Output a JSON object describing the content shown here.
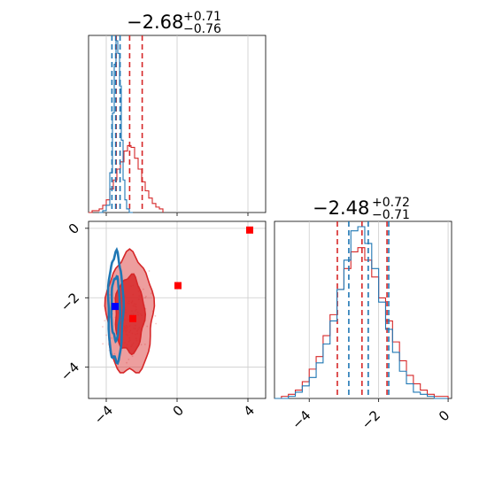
{
  "colors": {
    "red": "#d62728",
    "blue": "#1f77b4",
    "grid": "#cccccc",
    "axis": "#000000",
    "marker_red": "#ff0000",
    "marker_blue": "#0000ff"
  },
  "chart_data": [
    {
      "type": "histogram",
      "panel": "top-left",
      "title_main": "−2.68",
      "title_sup": "+0.71",
      "title_sub": "−0.76",
      "xlim": [
        -5,
        5
      ],
      "xticks": [
        -4,
        0,
        4
      ],
      "tick_labels_shown": false,
      "grid": true,
      "series": [
        {
          "color": "red",
          "bins_x": [
            -4.9,
            -4.7,
            -4.5,
            -4.3,
            -4.1,
            -3.9,
            -3.7,
            -3.5,
            -3.3,
            -3.1,
            -2.9,
            -2.7,
            -2.5,
            -2.3,
            -2.1,
            -1.9,
            -1.7,
            -1.5,
            -1.3,
            -1.1,
            -0.9
          ],
          "values": [
            0,
            0.01,
            0.01,
            0.02,
            0.04,
            0.07,
            0.13,
            0.18,
            0.24,
            0.28,
            0.34,
            0.37,
            0.36,
            0.3,
            0.24,
            0.17,
            0.12,
            0.08,
            0.05,
            0.03,
            0.02
          ],
          "quantiles": [
            -3.44,
            -2.68,
            -1.97
          ]
        },
        {
          "color": "blue",
          "bins_x": [
            -4.3,
            -4.1,
            -3.9,
            -3.7,
            -3.6,
            -3.5,
            -3.4,
            -3.3,
            -3.2,
            -3.1,
            -3.0,
            -2.9,
            -2.8,
            -2.6
          ],
          "values": [
            0,
            0.01,
            0.04,
            0.22,
            0.55,
            0.82,
            0.95,
            0.88,
            0.7,
            0.4,
            0.18,
            0.07,
            0.02,
            0
          ],
          "quantiles": [
            -3.68,
            -3.47,
            -3.22
          ]
        }
      ]
    },
    {
      "type": "histogram",
      "panel": "bottom-right",
      "title_main": "−2.48",
      "title_sup": "+0.72",
      "title_sub": "−0.71",
      "xlim": [
        -5,
        0.1
      ],
      "xticks": [
        -4,
        -2,
        0
      ],
      "xtick_labels": [
        "−4",
        "−2",
        "0"
      ],
      "grid": true,
      "series": [
        {
          "color": "red",
          "bins_x": [
            -4.9,
            -4.7,
            -4.5,
            -4.3,
            -4.1,
            -3.9,
            -3.7,
            -3.5,
            -3.3,
            -3.1,
            -2.9,
            -2.7,
            -2.5,
            -2.3,
            -2.1,
            -1.9,
            -1.7,
            -1.5,
            -1.3,
            -1.1,
            -0.9,
            -0.7,
            -0.5,
            -0.3,
            -0.1
          ],
          "values": [
            0,
            0.01,
            0.02,
            0.04,
            0.08,
            0.14,
            0.2,
            0.3,
            0.4,
            0.52,
            0.62,
            0.7,
            0.72,
            0.66,
            0.58,
            0.48,
            0.37,
            0.27,
            0.18,
            0.11,
            0.07,
            0.04,
            0.02,
            0.01,
            0.01
          ],
          "quantiles": [
            -3.19,
            -2.48,
            -1.76
          ]
        },
        {
          "color": "blue",
          "bins_x": [
            -4.9,
            -4.7,
            -4.5,
            -4.3,
            -4.1,
            -3.9,
            -3.7,
            -3.5,
            -3.3,
            -3.1,
            -2.9,
            -2.7,
            -2.5,
            -2.3,
            -2.1,
            -1.9,
            -1.7,
            -1.5,
            -1.3,
            -1.1,
            -0.9,
            -0.7,
            -0.5,
            -0.3,
            -0.1
          ],
          "values": [
            0,
            0,
            0.01,
            0.03,
            0.06,
            0.1,
            0.17,
            0.26,
            0.37,
            0.52,
            0.66,
            0.8,
            0.82,
            0.74,
            0.62,
            0.46,
            0.33,
            0.22,
            0.13,
            0.07,
            0.03,
            0.02,
            0.01,
            0,
            0
          ],
          "quantiles": [
            -2.86,
            -2.3,
            -1.71
          ]
        }
      ]
    },
    {
      "type": "contour",
      "panel": "bottom-left",
      "xlim": [
        -5,
        5
      ],
      "ylim": [
        -4.9,
        0.2
      ],
      "xticks": [
        -4,
        0,
        4
      ],
      "yticks": [
        0,
        -2,
        -4
      ],
      "xtick_labels": [
        "−4",
        "0",
        "4"
      ],
      "ytick_labels": [
        "0",
        "−2",
        "−4"
      ],
      "grid": true,
      "series": [
        {
          "color": "red",
          "center": [
            -2.68,
            -2.48
          ],
          "levels": [
            {
              "rx": 1.32,
              "ry": 1.72,
              "fill_opacity": 0.45
            },
            {
              "rx": 0.82,
              "ry": 1.1,
              "fill_opacity": 0.85
            }
          ]
        },
        {
          "color": "blue",
          "center": [
            -3.47,
            -2.3
          ],
          "levels": [
            {
              "rx": 0.42,
              "ry": 1.55
            },
            {
              "rx": 0.24,
              "ry": 0.9
            }
          ]
        }
      ],
      "markers": [
        {
          "color": "marker_red",
          "x": 4.1,
          "y": -0.05
        },
        {
          "color": "marker_red",
          "x": 0.05,
          "y": -1.65
        },
        {
          "color": "marker_red",
          "x": -2.5,
          "y": -2.6
        },
        {
          "color": "marker_blue",
          "x": -3.5,
          "y": -2.25
        }
      ]
    }
  ]
}
